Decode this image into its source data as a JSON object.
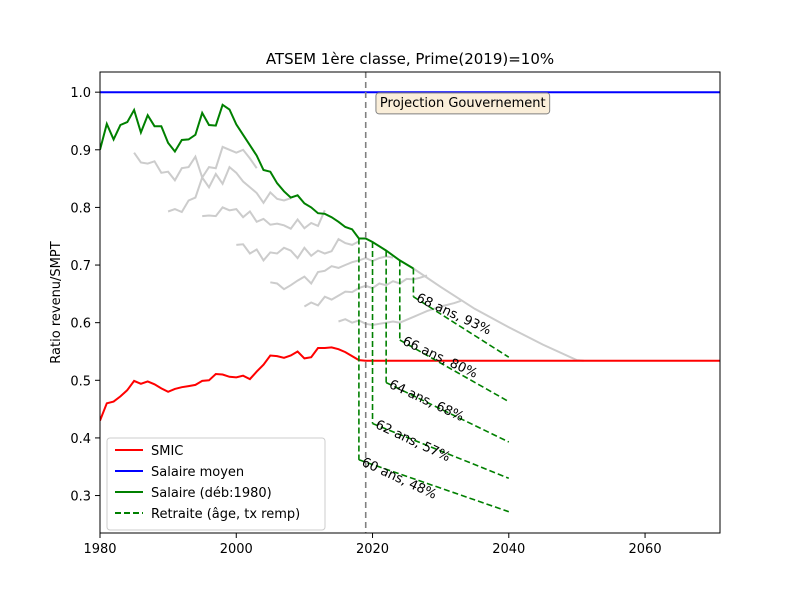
{
  "chart_data": {
    "type": "line",
    "title": "ATSEM 1ère classe, Prime(2019)=10%",
    "xlabel": "",
    "ylabel": "Ratio revenu/SMPT",
    "xlim": [
      1980,
      2071
    ],
    "ylim": [
      0.235,
      1.035
    ],
    "x_ticks": [
      1980,
      2000,
      2020,
      2040,
      2060
    ],
    "y_ticks": [
      0.3,
      0.4,
      0.5,
      0.6,
      0.7,
      0.8,
      0.9,
      1.0
    ],
    "grid": false,
    "legend_position": "lower-left",
    "vline": {
      "x": 2019,
      "color": "#808080",
      "style": "dashed"
    },
    "box_annotation": {
      "text": "Projection Gouvernement",
      "x": 2020.5,
      "y": 0.985
    },
    "series": [
      {
        "name": "SMIC",
        "color": "#ff0000",
        "style": "solid",
        "x": [
          1980,
          1981,
          1982,
          1983,
          1984,
          1985,
          1986,
          1987,
          1988,
          1989,
          1990,
          1991,
          1992,
          1993,
          1994,
          1995,
          1996,
          1997,
          1998,
          1999,
          2000,
          2001,
          2002,
          2003,
          2004,
          2005,
          2006,
          2007,
          2008,
          2009,
          2010,
          2011,
          2012,
          2013,
          2014,
          2015,
          2016,
          2017,
          2018,
          2019,
          2030,
          2040,
          2050,
          2060,
          2071
        ],
        "y": [
          0.43,
          0.46,
          0.463,
          0.472,
          0.483,
          0.499,
          0.494,
          0.498,
          0.493,
          0.486,
          0.48,
          0.485,
          0.488,
          0.49,
          0.492,
          0.499,
          0.5,
          0.511,
          0.51,
          0.506,
          0.505,
          0.508,
          0.502,
          0.515,
          0.527,
          0.543,
          0.542,
          0.539,
          0.543,
          0.55,
          0.538,
          0.54,
          0.556,
          0.556,
          0.557,
          0.554,
          0.549,
          0.542,
          0.535,
          0.534,
          0.534,
          0.534,
          0.534,
          0.534,
          0.534
        ]
      },
      {
        "name": "Salaire moyen",
        "color": "#0000ff",
        "style": "solid",
        "x": [
          1980,
          2071
        ],
        "y": [
          1.0,
          1.0
        ]
      },
      {
        "name": "Salaire (déb:1980)",
        "color": "#008000",
        "style": "solid",
        "x": [
          1980,
          1981,
          1982,
          1983,
          1984,
          1985,
          1986,
          1987,
          1988,
          1989,
          1990,
          1991,
          1992,
          1993,
          1994,
          1995,
          1996,
          1997,
          1998,
          1999,
          2000,
          2001,
          2002,
          2003,
          2004,
          2005,
          2006,
          2007,
          2008,
          2009,
          2010,
          2011,
          2012,
          2013,
          2014,
          2015,
          2016,
          2017,
          2018,
          2019,
          2020,
          2022,
          2024,
          2026
        ],
        "y": [
          0.9,
          0.945,
          0.918,
          0.943,
          0.948,
          0.969,
          0.93,
          0.96,
          0.941,
          0.941,
          0.912,
          0.897,
          0.917,
          0.918,
          0.926,
          0.964,
          0.943,
          0.942,
          0.978,
          0.97,
          0.944,
          0.926,
          0.908,
          0.89,
          0.865,
          0.862,
          0.842,
          0.828,
          0.817,
          0.821,
          0.807,
          0.8,
          0.79,
          0.789,
          0.783,
          0.775,
          0.766,
          0.762,
          0.746,
          0.746,
          0.74,
          0.725,
          0.708,
          0.694
        ]
      },
      {
        "name": "Retraite (âge, tx remp)",
        "color": "#008000",
        "style": "dashed",
        "drops": [
          {
            "x": 2018,
            "from": 0.746,
            "to": 0.362
          },
          {
            "x": 2020,
            "from": 0.74,
            "to": 0.425
          },
          {
            "x": 2022,
            "from": 0.725,
            "to": 0.496
          },
          {
            "x": 2024,
            "from": 0.708,
            "to": 0.57
          },
          {
            "x": 2026,
            "from": 0.694,
            "to": 0.645
          }
        ],
        "tails": [
          {
            "x": [
              2018,
              2040
            ],
            "y": [
              0.362,
              0.272
            ]
          },
          {
            "x": [
              2020,
              2040
            ],
            "y": [
              0.425,
              0.33
            ]
          },
          {
            "x": [
              2022,
              2040
            ],
            "y": [
              0.496,
              0.393
            ]
          },
          {
            "x": [
              2024,
              2040
            ],
            "y": [
              0.57,
              0.463
            ]
          },
          {
            "x": [
              2026,
              2040
            ],
            "y": [
              0.645,
              0.54
            ]
          }
        ]
      }
    ],
    "gray_lines": [
      {
        "x": [
          1985,
          1986,
          1987,
          1988,
          1989,
          1990,
          1991,
          1992,
          1993,
          1994,
          1995,
          1996,
          1997,
          1998,
          1999,
          2000,
          2001,
          2002,
          2003
        ],
        "y": [
          0.895,
          0.878,
          0.876,
          0.88,
          0.86,
          0.862,
          0.847,
          0.868,
          0.87,
          0.888,
          0.852,
          0.87,
          0.868,
          0.905,
          0.9,
          0.895,
          0.9,
          0.885,
          0.868
        ]
      },
      {
        "x": [
          1990,
          1991,
          1992,
          1993,
          1994,
          1995,
          1996,
          1997,
          1998,
          1999,
          2000,
          2001,
          2002,
          2003,
          2004,
          2005,
          2006,
          2007,
          2008
        ],
        "y": [
          0.793,
          0.797,
          0.792,
          0.812,
          0.817,
          0.852,
          0.835,
          0.858,
          0.841,
          0.87,
          0.86,
          0.845,
          0.835,
          0.825,
          0.808,
          0.826,
          0.815,
          0.812,
          0.816
        ]
      },
      {
        "x": [
          1995,
          1996,
          1997,
          1998,
          1999,
          2000,
          2001,
          2002,
          2003,
          2004,
          2005,
          2006,
          2007,
          2008,
          2009,
          2010,
          2011,
          2012,
          2013
        ],
        "y": [
          0.785,
          0.786,
          0.785,
          0.8,
          0.795,
          0.797,
          0.783,
          0.793,
          0.775,
          0.78,
          0.77,
          0.772,
          0.769,
          0.763,
          0.779,
          0.764,
          0.773,
          0.768,
          0.795
        ]
      },
      {
        "x": [
          2000,
          2001,
          2002,
          2003,
          2004,
          2005,
          2006,
          2007,
          2008,
          2009,
          2010,
          2011,
          2012,
          2013,
          2014,
          2015,
          2016,
          2017,
          2018
        ],
        "y": [
          0.735,
          0.736,
          0.72,
          0.727,
          0.708,
          0.722,
          0.72,
          0.73,
          0.725,
          0.712,
          0.73,
          0.716,
          0.725,
          0.72,
          0.724,
          0.745,
          0.738,
          0.735,
          0.741
        ]
      },
      {
        "x": [
          2005,
          2006,
          2007,
          2008,
          2009,
          2010,
          2011,
          2012,
          2013,
          2014,
          2015,
          2016,
          2017,
          2018,
          2019,
          2020,
          2021,
          2022,
          2023
        ],
        "y": [
          0.67,
          0.668,
          0.658,
          0.665,
          0.673,
          0.68,
          0.668,
          0.688,
          0.69,
          0.698,
          0.695,
          0.7,
          0.705,
          0.708,
          0.712,
          0.707,
          0.712,
          0.715,
          0.713
        ]
      },
      {
        "x": [
          2010,
          2011,
          2012,
          2013,
          2014,
          2015,
          2016,
          2017,
          2018,
          2019,
          2020,
          2021,
          2022,
          2023,
          2024,
          2025,
          2026,
          2027,
          2028
        ],
        "y": [
          0.628,
          0.635,
          0.63,
          0.645,
          0.64,
          0.647,
          0.654,
          0.653,
          0.66,
          0.664,
          0.66,
          0.668,
          0.665,
          0.672,
          0.668,
          0.676,
          0.675,
          0.678,
          0.682
        ]
      },
      {
        "x": [
          2015,
          2016,
          2017,
          2018,
          2019,
          2020,
          2021,
          2022,
          2023,
          2024,
          2025,
          2026,
          2027,
          2028,
          2029,
          2030,
          2031,
          2032,
          2033
        ],
        "y": [
          0.602,
          0.606,
          0.6,
          0.604,
          0.598,
          0.596,
          0.598,
          0.6,
          0.602,
          0.6,
          0.605,
          0.61,
          0.615,
          0.62,
          0.624,
          0.628,
          0.631,
          0.634,
          0.638
        ]
      },
      {
        "x": [
          2026,
          2030,
          2035,
          2040,
          2045,
          2050,
          2051
        ],
        "y": [
          0.694,
          0.662,
          0.624,
          0.592,
          0.562,
          0.535,
          0.534
        ]
      }
    ],
    "annotations": [
      {
        "text": "60 ans, 48%",
        "x": 2018.3,
        "y": 0.36
      },
      {
        "text": "62 ans, 57%",
        "x": 2020.3,
        "y": 0.425
      },
      {
        "text": "64 ans, 68%",
        "x": 2022.3,
        "y": 0.495
      },
      {
        "text": "66 ans, 80%",
        "x": 2024.3,
        "y": 0.57
      },
      {
        "text": "68 ans, 93%",
        "x": 2026.3,
        "y": 0.645
      }
    ],
    "legend": [
      {
        "label": "SMIC",
        "color": "#ff0000",
        "style": "solid"
      },
      {
        "label": "Salaire moyen",
        "color": "#0000ff",
        "style": "solid"
      },
      {
        "label": "Salaire (déb:1980)",
        "color": "#008000",
        "style": "solid"
      },
      {
        "label": "Retraite (âge, tx remp)",
        "color": "#008000",
        "style": "dashed"
      }
    ]
  }
}
